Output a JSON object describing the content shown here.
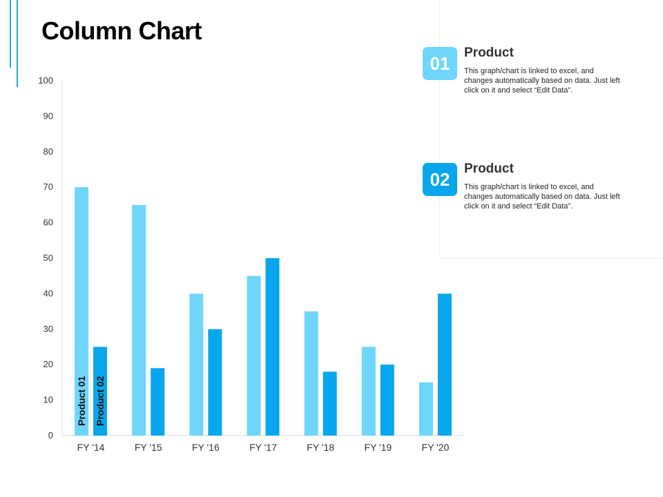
{
  "page": {
    "title": "Column Chart"
  },
  "colors": {
    "product01": "#6ed6fa",
    "product02": "#08a6ec",
    "accent_line": "#16a9e8"
  },
  "info_cards": [
    {
      "number": "01",
      "heading": "Product",
      "description": "This graph/chart is linked to excel, and changes automatically based on data. Just left click on it and select “Edit Data”."
    },
    {
      "number": "02",
      "heading": "Product",
      "description": "This graph/chart is linked to excel, and changes automatically based on data. Just left click on it and select “Edit Data”."
    }
  ],
  "chart_data": {
    "type": "bar",
    "categories": [
      "FY '14",
      "FY '15",
      "FY '16",
      "FY '17",
      "FY '18",
      "FY '19",
      "FY '20"
    ],
    "series": [
      {
        "name": "Product 01",
        "values": [
          70,
          65,
          40,
          45,
          35,
          25,
          15
        ]
      },
      {
        "name": "Product 02",
        "values": [
          25,
          19,
          30,
          50,
          18,
          20,
          40
        ]
      }
    ],
    "ylim": [
      0,
      100
    ],
    "yticks": [
      0,
      10,
      20,
      30,
      40,
      50,
      60,
      70,
      80,
      90,
      100
    ],
    "title": "",
    "xlabel": "",
    "ylabel": "",
    "grid": false,
    "legend": "series names printed vertically inside the first category's bars"
  }
}
